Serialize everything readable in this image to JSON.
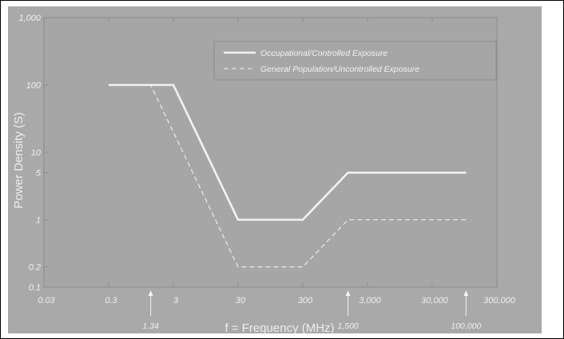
{
  "chart_data": {
    "type": "line",
    "xscale": "log",
    "yscale": "log",
    "xlim": [
      0.03,
      300000
    ],
    "ylim": [
      0.1,
      1000
    ],
    "xlabel": "f = Frequency (MHz)",
    "ylabel": "Power Density (S)",
    "x_ticks": [
      {
        "value": 0.03,
        "label": "0.03"
      },
      {
        "value": 0.3,
        "label": "0.3"
      },
      {
        "value": 3,
        "label": "3"
      },
      {
        "value": 30,
        "label": "30"
      },
      {
        "value": 300,
        "label": "300"
      },
      {
        "value": 3000,
        "label": "3,000"
      },
      {
        "value": 30000,
        "label": "30,000"
      },
      {
        "value": 300000,
        "label": "300,000"
      }
    ],
    "y_ticks": [
      {
        "value": 1000,
        "label": "1,000"
      },
      {
        "value": 100,
        "label": "100"
      },
      {
        "value": 10,
        "label": "10"
      },
      {
        "value": 5,
        "label": "5"
      },
      {
        "value": 1,
        "label": "1"
      },
      {
        "value": 0.2,
        "label": "0.2"
      },
      {
        "value": 0.1,
        "label": "0.1"
      }
    ],
    "x_markers": [
      {
        "value": 1.34,
        "label": "1.34"
      },
      {
        "value": 1500,
        "label": "1,500"
      },
      {
        "value": 100000,
        "label": "100,000"
      }
    ],
    "legend_position": "top-right",
    "series": [
      {
        "name": "Occupational/Controlled Exposure",
        "style": "solid",
        "points": [
          [
            0.3,
            100
          ],
          [
            3,
            100
          ],
          [
            30,
            1
          ],
          [
            300,
            1
          ],
          [
            1500,
            5
          ],
          [
            100000,
            5
          ]
        ]
      },
      {
        "name": "General Population/Uncontrolled Exposure",
        "style": "dashed",
        "points": [
          [
            0.3,
            100
          ],
          [
            1.34,
            100
          ],
          [
            30,
            0.2
          ],
          [
            300,
            0.2
          ],
          [
            1500,
            1
          ],
          [
            100000,
            1
          ]
        ]
      }
    ],
    "colors": {
      "plot_background": "#a6a6a6",
      "outer_background": "#a9a9a9",
      "line": "#f2f2f2",
      "text": "#f0f0f0"
    }
  }
}
